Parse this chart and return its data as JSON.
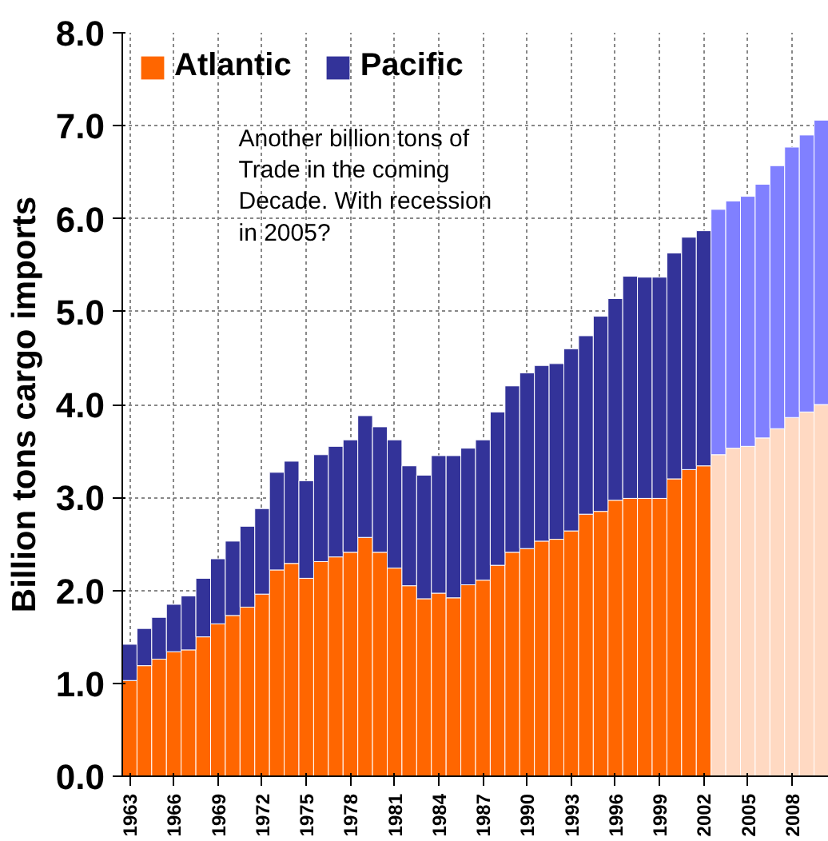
{
  "chart_data": {
    "type": "bar",
    "stacked": true,
    "ylabel": "Billion tons cargo imports",
    "categories": [
      "1963",
      null,
      null,
      "1966",
      null,
      null,
      "1969",
      null,
      null,
      "1972",
      null,
      null,
      "1975",
      null,
      null,
      "1978",
      null,
      null,
      "1981",
      null,
      null,
      "1984",
      null,
      null,
      "1987",
      null,
      null,
      "1990",
      null,
      null,
      "1993",
      null,
      null,
      "1996",
      null,
      null,
      "1999",
      null,
      null,
      "2002",
      null,
      null,
      "2005",
      null,
      null,
      "2008",
      null,
      null
    ],
    "series": [
      {
        "name": "Atlantic",
        "color": "#ff6600",
        "colors": [
          "#ff6600",
          "#ff6600",
          "#ff6600",
          "#ff6600",
          "#ff6600",
          "#ff6600",
          "#ff6600",
          "#ff6600",
          "#ff6600",
          "#ff6600",
          "#ff6600",
          "#ff6600",
          "#ff6600",
          "#ff6600",
          "#ff6600",
          "#ff6600",
          "#ff6600",
          "#ff6600",
          "#ff6600",
          "#ff6600",
          "#ff6600",
          "#ff6600",
          "#ff6600",
          "#ff6600",
          "#ff6600",
          "#ff6600",
          "#ff6600",
          "#ff6600",
          "#ff6600",
          "#ff6600",
          "#ff6600",
          "#ff6600",
          "#ff6600",
          "#ff6600",
          "#ff6600",
          "#ff6600",
          "#ff6600",
          "#ff6600",
          "#ff6600",
          "#ff6600",
          "#ffd9c2",
          "#ffd9c2",
          "#ffd9c2",
          "#ffd9c2",
          "#ffd9c2",
          "#ffd9c2",
          "#ffd9c2",
          "#ffd9c2"
        ],
        "values": [
          1.03,
          1.19,
          1.26,
          1.34,
          1.36,
          1.5,
          1.64,
          1.73,
          1.82,
          1.96,
          2.22,
          2.29,
          2.13,
          2.31,
          2.36,
          2.41,
          2.57,
          2.41,
          2.24,
          2.05,
          1.91,
          1.97,
          1.92,
          2.06,
          2.11,
          2.27,
          2.41,
          2.45,
          2.53,
          2.55,
          2.64,
          2.82,
          2.85,
          2.97,
          2.99,
          2.99,
          2.99,
          3.2,
          3.3,
          3.34,
          3.46,
          3.53,
          3.55,
          3.64,
          3.74,
          3.86,
          3.92,
          4.0
        ]
      },
      {
        "name": "Pacific",
        "color": "#333399",
        "colors": [
          "#333399",
          "#333399",
          "#333399",
          "#333399",
          "#333399",
          "#333399",
          "#333399",
          "#333399",
          "#333399",
          "#333399",
          "#333399",
          "#333399",
          "#333399",
          "#333399",
          "#333399",
          "#333399",
          "#333399",
          "#333399",
          "#333399",
          "#333399",
          "#333399",
          "#333399",
          "#333399",
          "#333399",
          "#333399",
          "#333399",
          "#333399",
          "#333399",
          "#333399",
          "#333399",
          "#333399",
          "#333399",
          "#333399",
          "#333399",
          "#333399",
          "#333399",
          "#333399",
          "#333399",
          "#333399",
          "#333399",
          "#8080ff",
          "#8080ff",
          "#8080ff",
          "#8080ff",
          "#8080ff",
          "#8080ff",
          "#8080ff",
          "#8080ff"
        ],
        "values": [
          0.39,
          0.4,
          0.45,
          0.51,
          0.58,
          0.63,
          0.7,
          0.8,
          0.87,
          0.92,
          1.05,
          1.1,
          1.05,
          1.15,
          1.19,
          1.21,
          1.31,
          1.35,
          1.38,
          1.29,
          1.33,
          1.48,
          1.53,
          1.47,
          1.51,
          1.65,
          1.79,
          1.89,
          1.89,
          1.89,
          1.96,
          1.92,
          2.1,
          2.17,
          2.39,
          2.38,
          2.38,
          2.43,
          2.5,
          2.53,
          2.64,
          2.66,
          2.69,
          2.73,
          2.83,
          2.91,
          2.98,
          3.06
        ]
      }
    ],
    "ylim": [
      0,
      8
    ],
    "yticks": [
      {
        "value": 0,
        "label": "0.0"
      },
      {
        "value": 1,
        "label": "1.0"
      },
      {
        "value": 2,
        "label": "2.0"
      },
      {
        "value": 3,
        "label": "3.0"
      },
      {
        "value": 4,
        "label": "4.0"
      },
      {
        "value": 5,
        "label": "5.0"
      },
      {
        "value": 6,
        "label": "6.0"
      },
      {
        "value": 7,
        "label": "7.0"
      },
      {
        "value": 8,
        "label": "8.0"
      }
    ],
    "grid": true,
    "legend": "top left",
    "annotations": [
      "Another billion tons of Trade in the coming Decade. With recession in 2005?"
    ]
  }
}
